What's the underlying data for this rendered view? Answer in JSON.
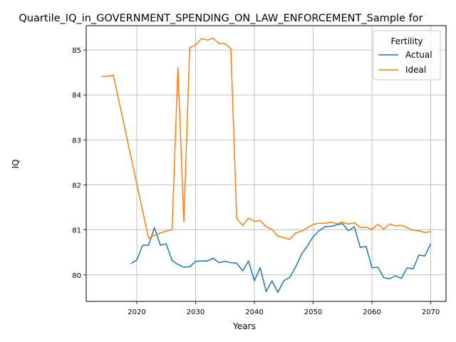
{
  "chart_data": {
    "type": "line",
    "title": "Quartile_IQ_in_GOVERNMENT_SPENDING_ON_LAW_ENFORCEMENT_Sample for",
    "xlabel": "Years",
    "ylabel": "IQ",
    "xlim": [
      2011.4,
      2072.6
    ],
    "ylim": [
      79.41,
      85.54
    ],
    "xticks": [
      2020,
      2030,
      2040,
      2050,
      2060,
      2070
    ],
    "yticks": [
      80,
      81,
      82,
      83,
      84,
      85
    ],
    "grid": true,
    "legend": {
      "title": "Fertility",
      "placement": "top-right"
    },
    "series": [
      {
        "name": "Actual",
        "color": "#1f77b4",
        "x": [
          2019,
          2020,
          2021,
          2022,
          2023,
          2024,
          2025,
          2026,
          2027,
          2028,
          2029,
          2030,
          2031,
          2032,
          2033,
          2034,
          2035,
          2036,
          2037,
          2038,
          2039,
          2040,
          2041,
          2042,
          2043,
          2044,
          2045,
          2046,
          2047,
          2048,
          2049,
          2050,
          2051,
          2052,
          2053,
          2054,
          2055,
          2056,
          2057,
          2058,
          2059,
          2060,
          2061,
          2062,
          2063,
          2064,
          2065,
          2066,
          2067,
          2068,
          2069,
          2070
        ],
        "y": [
          80.25,
          80.33,
          80.66,
          80.66,
          81.05,
          80.66,
          80.69,
          80.32,
          80.23,
          80.17,
          80.18,
          80.3,
          80.31,
          80.31,
          80.37,
          80.27,
          80.3,
          80.27,
          80.26,
          80.09,
          80.31,
          79.87,
          80.16,
          79.63,
          79.87,
          79.61,
          79.87,
          79.94,
          80.17,
          80.45,
          80.64,
          80.85,
          80.98,
          81.07,
          81.08,
          81.11,
          81.14,
          80.98,
          81.07,
          80.61,
          80.63,
          80.16,
          80.17,
          79.94,
          79.91,
          79.98,
          79.92,
          80.16,
          80.13,
          80.44,
          80.42,
          80.69
        ]
      },
      {
        "name": "Ideal",
        "color": "#ff7f0e",
        "x": [
          2014,
          2015,
          2016,
          2022,
          2023,
          2024,
          2025,
          2026,
          2027,
          2028,
          2029,
          2030,
          2031,
          2032,
          2033,
          2034,
          2035,
          2036,
          2037,
          2038,
          2039,
          2040,
          2041,
          2042,
          2043,
          2044,
          2045,
          2046,
          2047,
          2048,
          2049,
          2050,
          2051,
          2052,
          2053,
          2054,
          2055,
          2056,
          2057,
          2058,
          2059,
          2060,
          2061,
          2062,
          2063,
          2064,
          2065,
          2066,
          2067,
          2068,
          2069,
          2070
        ],
        "y": [
          84.41,
          84.41,
          84.44,
          80.81,
          80.88,
          80.93,
          80.97,
          81.01,
          84.61,
          81.18,
          85.05,
          85.11,
          85.25,
          85.22,
          85.26,
          85.14,
          85.14,
          85.03,
          81.25,
          81.1,
          81.26,
          81.19,
          81.21,
          81.07,
          81.01,
          80.86,
          80.83,
          80.79,
          80.93,
          80.97,
          81.05,
          81.12,
          81.15,
          81.15,
          81.17,
          81.14,
          81.17,
          81.13,
          81.16,
          81.05,
          81.06,
          81.01,
          81.12,
          81.02,
          81.13,
          81.09,
          81.1,
          81.05,
          80.99,
          80.98,
          80.94,
          80.96
        ]
      }
    ]
  }
}
